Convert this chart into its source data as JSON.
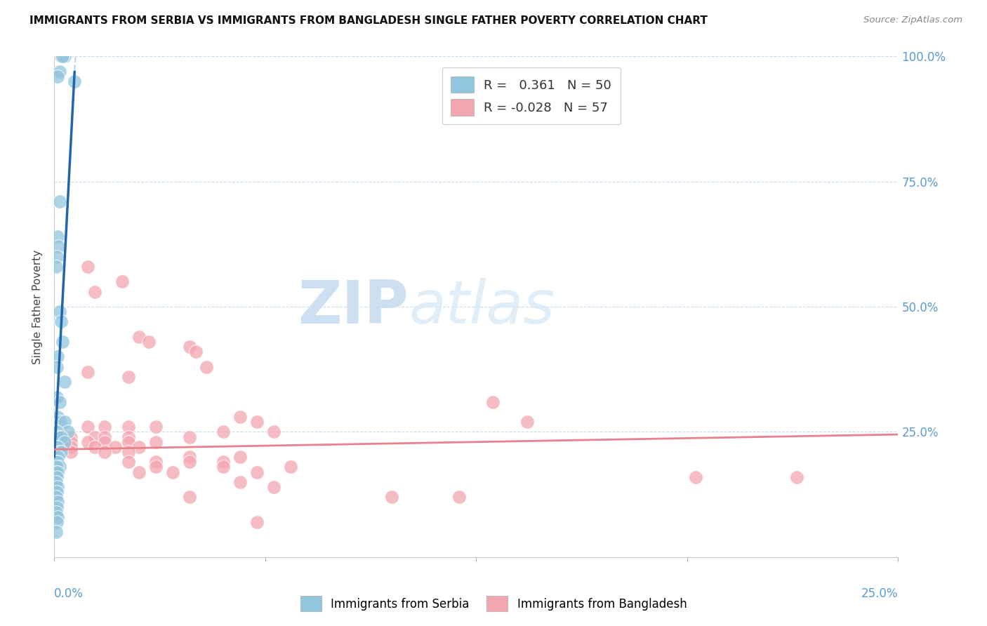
{
  "title": "IMMIGRANTS FROM SERBIA VS IMMIGRANTS FROM BANGLADESH SINGLE FATHER POVERTY CORRELATION CHART",
  "source": "Source: ZipAtlas.com",
  "ylabel": "Single Father Poverty",
  "legend1_label": "Immigrants from Serbia",
  "legend2_label": "Immigrants from Bangladesh",
  "R1": 0.361,
  "N1": 50,
  "R2": -0.028,
  "N2": 57,
  "serbia_color": "#92c5de",
  "bangladesh_color": "#f4a6b0",
  "serbia_line_color": "#2166ac",
  "bangladesh_line_color": "#e8808e",
  "serbia_scatter": [
    [
      0.002,
      1.0
    ],
    [
      0.003,
      1.0
    ],
    [
      0.0025,
      1.0
    ],
    [
      0.0015,
      0.97
    ],
    [
      0.001,
      0.96
    ],
    [
      0.006,
      0.95
    ],
    [
      0.0015,
      0.71
    ],
    [
      0.001,
      0.64
    ],
    [
      0.0012,
      0.62
    ],
    [
      0.0008,
      0.6
    ],
    [
      0.0006,
      0.58
    ],
    [
      0.0015,
      0.49
    ],
    [
      0.002,
      0.47
    ],
    [
      0.0025,
      0.43
    ],
    [
      0.001,
      0.4
    ],
    [
      0.0008,
      0.38
    ],
    [
      0.003,
      0.35
    ],
    [
      0.0008,
      0.32
    ],
    [
      0.0015,
      0.31
    ],
    [
      0.001,
      0.28
    ],
    [
      0.0018,
      0.27
    ],
    [
      0.003,
      0.27
    ],
    [
      0.004,
      0.25
    ],
    [
      0.0008,
      0.25
    ],
    [
      0.0012,
      0.24
    ],
    [
      0.002,
      0.24
    ],
    [
      0.003,
      0.23
    ],
    [
      0.0006,
      0.22
    ],
    [
      0.001,
      0.22
    ],
    [
      0.0015,
      0.21
    ],
    [
      0.002,
      0.21
    ],
    [
      0.0008,
      0.2
    ],
    [
      0.0012,
      0.2
    ],
    [
      0.0006,
      0.19
    ],
    [
      0.001,
      0.19
    ],
    [
      0.0015,
      0.18
    ],
    [
      0.0008,
      0.18
    ],
    [
      0.0006,
      0.17
    ],
    [
      0.001,
      0.17
    ],
    [
      0.0008,
      0.16
    ],
    [
      0.0006,
      0.15
    ],
    [
      0.001,
      0.14
    ],
    [
      0.0008,
      0.13
    ],
    [
      0.0006,
      0.12
    ],
    [
      0.001,
      0.11
    ],
    [
      0.0008,
      0.1
    ],
    [
      0.0006,
      0.09
    ],
    [
      0.001,
      0.08
    ],
    [
      0.0008,
      0.07
    ],
    [
      0.0006,
      0.05
    ]
  ],
  "bangladesh_scatter": [
    [
      0.01,
      0.58
    ],
    [
      0.02,
      0.55
    ],
    [
      0.012,
      0.53
    ],
    [
      0.025,
      0.44
    ],
    [
      0.028,
      0.43
    ],
    [
      0.04,
      0.42
    ],
    [
      0.042,
      0.41
    ],
    [
      0.045,
      0.38
    ],
    [
      0.01,
      0.37
    ],
    [
      0.022,
      0.36
    ],
    [
      0.13,
      0.31
    ],
    [
      0.055,
      0.28
    ],
    [
      0.06,
      0.27
    ],
    [
      0.14,
      0.27
    ],
    [
      0.01,
      0.26
    ],
    [
      0.015,
      0.26
    ],
    [
      0.022,
      0.26
    ],
    [
      0.03,
      0.26
    ],
    [
      0.05,
      0.25
    ],
    [
      0.065,
      0.25
    ],
    [
      0.005,
      0.24
    ],
    [
      0.012,
      0.24
    ],
    [
      0.015,
      0.24
    ],
    [
      0.022,
      0.24
    ],
    [
      0.04,
      0.24
    ],
    [
      0.005,
      0.23
    ],
    [
      0.01,
      0.23
    ],
    [
      0.015,
      0.23
    ],
    [
      0.022,
      0.23
    ],
    [
      0.03,
      0.23
    ],
    [
      0.005,
      0.22
    ],
    [
      0.012,
      0.22
    ],
    [
      0.018,
      0.22
    ],
    [
      0.025,
      0.22
    ],
    [
      0.005,
      0.21
    ],
    [
      0.015,
      0.21
    ],
    [
      0.022,
      0.21
    ],
    [
      0.04,
      0.2
    ],
    [
      0.055,
      0.2
    ],
    [
      0.022,
      0.19
    ],
    [
      0.03,
      0.19
    ],
    [
      0.04,
      0.19
    ],
    [
      0.05,
      0.19
    ],
    [
      0.03,
      0.18
    ],
    [
      0.05,
      0.18
    ],
    [
      0.07,
      0.18
    ],
    [
      0.025,
      0.17
    ],
    [
      0.035,
      0.17
    ],
    [
      0.06,
      0.17
    ],
    [
      0.19,
      0.16
    ],
    [
      0.22,
      0.16
    ],
    [
      0.055,
      0.15
    ],
    [
      0.065,
      0.14
    ],
    [
      0.04,
      0.12
    ],
    [
      0.1,
      0.12
    ],
    [
      0.12,
      0.12
    ],
    [
      0.06,
      0.07
    ]
  ],
  "watermark_zip": "ZIP",
  "watermark_atlas": "atlas",
  "figsize": [
    14.06,
    8.92
  ],
  "dpi": 100,
  "xlim": [
    0,
    0.25
  ],
  "ylim": [
    0,
    1.0
  ],
  "serbia_trendline_slope": 128.0,
  "serbia_trendline_intercept": 0.2,
  "bangladesh_trendline_slope": 0.12,
  "bangladesh_trendline_intercept": 0.215
}
